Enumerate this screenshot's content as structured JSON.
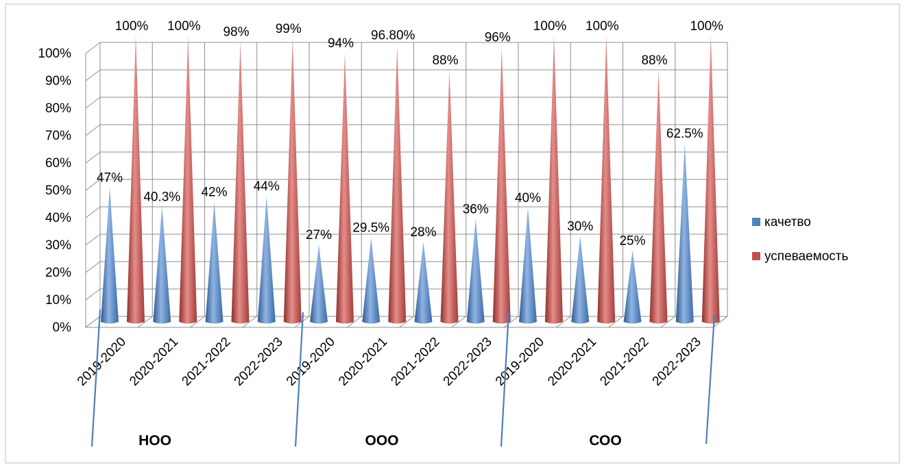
{
  "chart_data": {
    "type": "bar",
    "categories": [
      "2019-2020",
      "2020-2021",
      "2021-2022",
      "2022-2023",
      "2019-2020",
      "2020-2021",
      "2021-2022",
      "2022-2023",
      "2019-2020",
      "2020-2021",
      "2021-2022",
      "2022-2023"
    ],
    "groups": [
      {
        "label": "НОО"
      },
      {
        "label": "ООО"
      },
      {
        "label": "СОО"
      }
    ],
    "series": [
      {
        "name": "качетво",
        "color": "#4F81BD",
        "values": [
          47,
          40.3,
          42,
          44,
          27,
          29.5,
          28,
          36,
          40,
          30,
          25,
          62.5
        ],
        "labels": [
          "47%",
          "40.3%",
          "42%",
          "44%",
          "27%",
          "29.5%",
          "28%",
          "36%",
          "40%",
          "30%",
          "25%",
          "62.5%"
        ]
      },
      {
        "name": "успеваемость",
        "color": "#C0504D",
        "values": [
          100,
          100,
          98,
          99,
          94,
          96.8,
          88,
          96,
          100,
          100,
          88,
          100
        ],
        "labels": [
          "100%",
          "100%",
          "98%",
          "99%",
          "94%",
          "96.80%",
          "88%",
          "96%",
          "100%",
          "100%",
          "88%",
          "100%"
        ]
      }
    ],
    "y_ticks": [
      "0%",
      "10%",
      "20%",
      "30%",
      "40%",
      "50%",
      "60%",
      "70%",
      "80%",
      "90%",
      "100%"
    ],
    "ylim": [
      0,
      100
    ],
    "grid": true,
    "legend_position": "right",
    "title": "",
    "xlabel": "",
    "ylabel": ""
  }
}
